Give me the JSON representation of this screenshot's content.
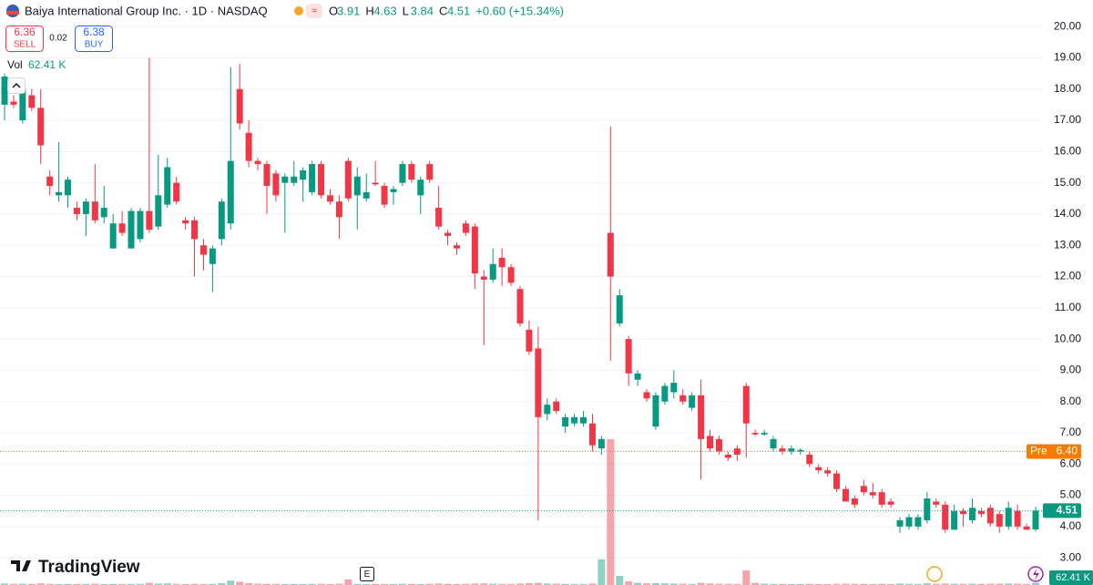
{
  "header": {
    "title": "Baiya International Group Inc. · 1D · NASDAQ",
    "ohlc": [
      {
        "label": "O",
        "value": "3.91"
      },
      {
        "label": "H",
        "value": "4.63"
      },
      {
        "label": "L",
        "value": "3.84"
      },
      {
        "label": "C",
        "value": "4.51"
      }
    ],
    "change": "+0.60 (+15.34%)",
    "sell": {
      "price": "6.36",
      "label": "SELL"
    },
    "spread": "0.02",
    "buy": {
      "price": "6.38",
      "label": "BUY"
    },
    "volume": {
      "label": "Vol",
      "value": "62.41 K"
    }
  },
  "chart_data": {
    "type": "candlestick",
    "ylim": [
      2.13,
      20.85
    ],
    "yticks": [
      {
        "value": 3,
        "label": "3.00"
      },
      {
        "value": 4,
        "label": "4.00"
      },
      {
        "value": 5,
        "label": "5.00"
      },
      {
        "value": 6,
        "label": "6.00"
      },
      {
        "value": 7,
        "label": "7.00"
      },
      {
        "value": 8,
        "label": "8.00"
      },
      {
        "value": 9,
        "label": "9.00"
      },
      {
        "value": 10,
        "label": "10.00"
      },
      {
        "value": 11,
        "label": "11.00"
      },
      {
        "value": 12,
        "label": "12.00"
      },
      {
        "value": 13,
        "label": "13.00"
      },
      {
        "value": 14,
        "label": "14.00"
      },
      {
        "value": 15,
        "label": "15.00"
      },
      {
        "value": 16,
        "label": "16.00"
      },
      {
        "value": 17,
        "label": "17.00"
      },
      {
        "value": 18,
        "label": "18.00"
      },
      {
        "value": 19,
        "label": "19.00"
      },
      {
        "value": 20,
        "label": "20.00"
      }
    ],
    "grid": true,
    "up_color": "#089981",
    "down_color": "#f23645",
    "series": [
      {
        "name": "Baiya International Group Inc.",
        "open": [
          17.5,
          17.6,
          17.0,
          17.8,
          17.4,
          15.2,
          14.6,
          14.6,
          14.2,
          14.0,
          14.4,
          13.9,
          12.9,
          13.7,
          12.9,
          13.2,
          14.1,
          13.6,
          14.3,
          15.0,
          13.8,
          13.8,
          13.0,
          12.4,
          13.2,
          13.7,
          18.0,
          16.6,
          15.7,
          15.6,
          15.3,
          15.0,
          15.0,
          15.1,
          14.7,
          15.6,
          14.6,
          14.4,
          15.7,
          14.6,
          14.5,
          15.0,
          14.9,
          14.7,
          15.0,
          15.6,
          14.6,
          15.6,
          14.2,
          13.4,
          13.0,
          13.7,
          13.6,
          12.0,
          11.9,
          12.6,
          12.3,
          11.6,
          10.3,
          9.7,
          7.6,
          8.0,
          7.2,
          7.3,
          7.3,
          7.3,
          6.5,
          13.4,
          10.5,
          10.0,
          8.7,
          8.3,
          7.2,
          8.0,
          8.3,
          8.2,
          7.8,
          8.2,
          6.9,
          6.8,
          6.3,
          6.5,
          8.5,
          7.0,
          6.95,
          6.5,
          6.5,
          6.4,
          6.4,
          6.3,
          5.9,
          5.8,
          5.7,
          5.2,
          4.9,
          5.3,
          5.1,
          5.1,
          4.8,
          4.0,
          4.0,
          4.0,
          4.2,
          4.8,
          4.7,
          3.9,
          4.5,
          4.2,
          4.5,
          4.6,
          4.4,
          4.0,
          4.5,
          4.0,
          3.91
        ],
        "high": [
          18.5,
          17.8,
          18.1,
          18.0,
          18.0,
          15.4,
          16.3,
          15.2,
          14.4,
          14.5,
          15.6,
          14.9,
          14.0,
          14.1,
          14.2,
          14.2,
          19.0,
          15.9,
          15.8,
          15.2,
          13.9,
          13.9,
          13.2,
          13.0,
          14.5,
          18.7,
          18.8,
          17.0,
          15.8,
          15.7,
          15.4,
          15.3,
          15.7,
          15.5,
          15.7,
          15.7,
          14.8,
          14.6,
          15.8,
          15.5,
          15.3,
          15.7,
          15.0,
          14.9,
          15.7,
          15.7,
          15.2,
          15.7,
          14.9,
          13.5,
          13.1,
          13.8,
          13.7,
          12.2,
          12.9,
          12.9,
          12.4,
          11.7,
          10.6,
          10.4,
          8.1,
          8.1,
          7.6,
          7.6,
          7.7,
          7.6,
          6.9,
          16.8,
          11.6,
          10.1,
          9.0,
          8.4,
          8.3,
          8.6,
          9.0,
          8.4,
          8.3,
          8.7,
          7.1,
          6.9,
          6.4,
          6.6,
          8.6,
          7.1,
          7.1,
          6.9,
          6.6,
          6.6,
          6.5,
          6.4,
          6.0,
          5.9,
          5.8,
          5.3,
          5.0,
          5.5,
          5.4,
          5.2,
          4.9,
          4.3,
          4.4,
          4.4,
          5.1,
          4.9,
          4.8,
          4.7,
          4.6,
          4.9,
          4.6,
          4.7,
          4.5,
          4.8,
          4.7,
          4.1,
          4.63
        ],
        "low": [
          17.0,
          17.4,
          16.9,
          17.3,
          15.6,
          14.6,
          14.4,
          14.2,
          13.8,
          13.3,
          13.7,
          13.7,
          12.9,
          13.3,
          12.9,
          13.1,
          13.4,
          13.5,
          14.2,
          14.3,
          13.5,
          12.0,
          12.2,
          11.5,
          13.0,
          13.5,
          16.7,
          15.5,
          15.4,
          14.0,
          14.4,
          13.4,
          14.9,
          14.4,
          14.6,
          14.5,
          14.3,
          13.2,
          14.4,
          13.5,
          14.4,
          14.9,
          14.2,
          14.3,
          14.9,
          15.0,
          14.0,
          15.0,
          13.5,
          13.0,
          12.7,
          13.3,
          11.6,
          9.8,
          11.8,
          11.7,
          11.7,
          10.4,
          9.5,
          4.2,
          7.4,
          7.6,
          7.0,
          7.2,
          7.2,
          6.4,
          6.3,
          9.3,
          10.4,
          8.5,
          8.5,
          8.0,
          7.1,
          7.9,
          8.1,
          7.9,
          7.7,
          5.5,
          6.4,
          6.3,
          6.1,
          6.1,
          6.2,
          6.9,
          6.9,
          6.4,
          6.3,
          6.3,
          6.3,
          5.9,
          5.7,
          5.6,
          5.1,
          4.8,
          4.6,
          5.0,
          4.9,
          4.6,
          4.6,
          3.8,
          3.9,
          3.9,
          4.1,
          4.6,
          3.8,
          3.9,
          4.0,
          4.1,
          4.3,
          4.0,
          3.8,
          3.9,
          3.9,
          3.9,
          3.84
        ],
        "close": [
          18.4,
          17.5,
          18.0,
          17.4,
          16.2,
          14.9,
          14.7,
          15.1,
          14.0,
          14.4,
          13.8,
          14.2,
          13.7,
          13.4,
          14.1,
          14.1,
          13.5,
          14.6,
          15.5,
          14.4,
          13.7,
          13.2,
          12.7,
          12.9,
          14.4,
          15.7,
          16.9,
          15.7,
          15.6,
          14.9,
          14.6,
          15.2,
          15.2,
          15.4,
          15.6,
          14.6,
          14.4,
          13.9,
          14.5,
          15.2,
          14.7,
          14.95,
          14.3,
          14.8,
          15.6,
          15.1,
          15.1,
          15.1,
          13.6,
          13.3,
          12.9,
          13.4,
          12.1,
          11.9,
          12.4,
          12.3,
          11.8,
          10.5,
          9.6,
          7.5,
          7.9,
          7.7,
          7.5,
          7.5,
          7.5,
          6.6,
          6.8,
          12.0,
          11.4,
          8.9,
          8.9,
          8.1,
          8.2,
          8.5,
          8.6,
          8.0,
          8.2,
          6.8,
          6.5,
          6.4,
          6.2,
          6.3,
          7.3,
          6.95,
          7.0,
          6.8,
          6.4,
          6.5,
          6.45,
          6.0,
          5.8,
          5.7,
          5.2,
          4.8,
          4.7,
          5.1,
          5.0,
          4.7,
          4.7,
          4.2,
          4.3,
          4.3,
          4.9,
          4.7,
          3.9,
          4.5,
          4.4,
          4.6,
          4.4,
          4.1,
          4.0,
          4.6,
          4.0,
          3.9,
          4.51
        ],
        "volume": [
          40000,
          30000,
          35000,
          30000,
          45000,
          30000,
          25000,
          30000,
          25000,
          30000,
          35000,
          25000,
          30000,
          25000,
          30000,
          30000,
          60000,
          40000,
          45000,
          30000,
          25000,
          30000,
          25000,
          30000,
          50000,
          120000,
          90000,
          50000,
          35000,
          30000,
          30000,
          25000,
          30000,
          25000,
          30000,
          30000,
          25000,
          35000,
          150000,
          30000,
          25000,
          30000,
          25000,
          25000,
          35000,
          30000,
          25000,
          30000,
          40000,
          30000,
          25000,
          30000,
          40000,
          45000,
          35000,
          30000,
          30000,
          40000,
          50000,
          60000,
          40000,
          35000,
          30000,
          30000,
          30000,
          40000,
          700000,
          4000000,
          250000,
          100000,
          60000,
          45000,
          50000,
          45000,
          40000,
          35000,
          30000,
          60000,
          40000,
          35000,
          30000,
          30000,
          400000,
          60000,
          35000,
          30000,
          25000,
          25000,
          25000,
          30000,
          25000,
          25000,
          30000,
          35000,
          30000,
          30000,
          25000,
          30000,
          25000,
          40000,
          35000,
          30000,
          45000,
          35000,
          40000,
          35000,
          30000,
          35000,
          30000,
          35000,
          35000,
          40000,
          35000,
          30000,
          62410
        ]
      }
    ],
    "pre_market": {
      "label": "Pre",
      "value": 6.4,
      "value_label": "6.40"
    },
    "last_price": {
      "value": 4.51,
      "value_label": "4.51"
    },
    "volume_label": "62.41 K",
    "brand": "TradingView",
    "event_marker": "E"
  }
}
